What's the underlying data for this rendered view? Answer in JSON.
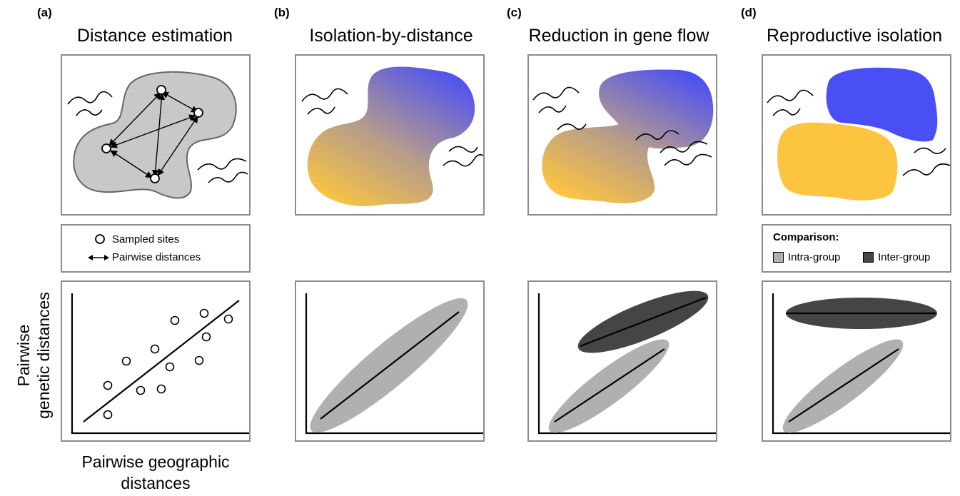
{
  "panels": [
    {
      "letter": "(a)",
      "title": "Distance estimation"
    },
    {
      "letter": "(b)",
      "title": "Isolation-by-distance"
    },
    {
      "letter": "(c)",
      "title": "Reduction in gene flow"
    },
    {
      "letter": "(d)",
      "title": "Reproductive isolation"
    }
  ],
  "legend_a": {
    "sampled_sites": "Sampled sites",
    "pairwise_distances": "Pairwise distances"
  },
  "legend_d": {
    "heading": "Comparison:",
    "intra": "Intra-group",
    "inter": "Inter-group"
  },
  "axes": {
    "y_line1": "Pairwise",
    "y_line2": "genetic distances",
    "x_line1": "Pairwise geographic",
    "x_line2": "distances"
  },
  "colors": {
    "blue": "#4a4ef5",
    "yellow": "#fdc53f",
    "intra_gray": "#b0b0b0",
    "inter_dark": "#454545",
    "land_gray": "#c8c8c8",
    "border": "#8c8c8c"
  }
}
